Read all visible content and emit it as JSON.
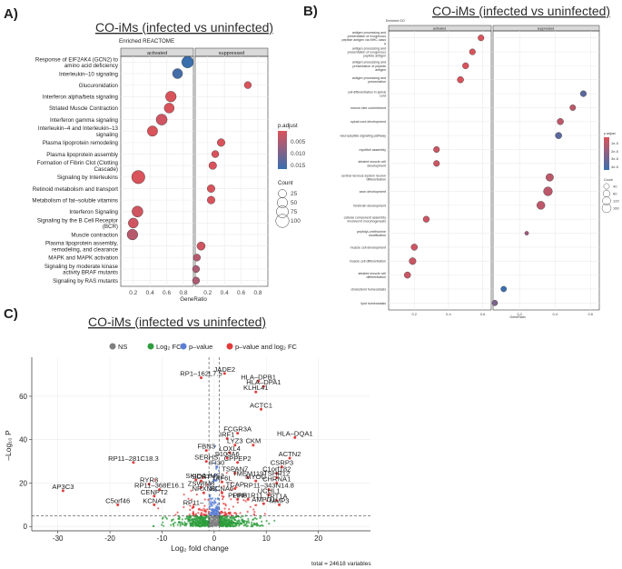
{
  "panels": {
    "a": {
      "letter": "A)",
      "title": "CO-iMs (infected vs uninfected)",
      "subtitle": "Enriched REACTOME",
      "facets": [
        "activated",
        "suppressed"
      ],
      "xlabel": "GeneRatio",
      "legend": {
        "color_title": "p.adjust",
        "color_ticks": [
          "0.005",
          "0.010",
          "0.015"
        ],
        "size_title": "Count",
        "size_ticks": [
          "25",
          "50",
          "75",
          "100"
        ]
      }
    },
    "b": {
      "letter": "B)",
      "title": "CO-iMs (infected vs uninfected)",
      "subtitle": "Enriched GO",
      "facets": [
        "activated",
        "suppressed"
      ],
      "xlabel": "GeneRatio",
      "legend": {
        "color_title": "p.adjust",
        "color_ticks": [
          "1e-5",
          "2e-5",
          "3e-5",
          "4e-5"
        ],
        "size_title": "Count",
        "size_ticks": [
          "40",
          "80",
          "120",
          "160"
        ]
      }
    },
    "c": {
      "letter": "C)",
      "title": "CO-iMs (infected vs uninfected)",
      "legend": [
        "NS",
        "Log₂ FC",
        "p–value",
        "p–value and log₂ FC"
      ],
      "xlabel": "Log₂ fold change",
      "ylabel": "–Log₁₀ P",
      "footer": "total = 24618 variables"
    }
  },
  "colors": {
    "high_sig": "#c0392b",
    "low_sig": "#3b6fb0",
    "ns": "#7f7f7f",
    "log2fc": "#2e9e3c",
    "pvalue": "#5a7fd6",
    "both": "#e33b3b"
  },
  "chart_data": [
    {
      "type": "scatter",
      "title": "Enriched REACTOME",
      "xlabel": "GeneRatio",
      "xlim": [
        0.05,
        0.92
      ],
      "xticks": [
        "0.2",
        "0.4",
        "0.6",
        "0.8"
      ],
      "categories": [
        "Response of EIF2AK4 (GCN2) to amino acid deficiency",
        "Interleukin–10 signaling",
        "Glucuronidation",
        "Interferon alpha/beta signaling",
        "Striated Muscle Contraction",
        "Interferon gamma signaling",
        "Interleukin–4 and Interleukin–13 signaling",
        "Plasma lipoprotein remodeling",
        "Plasma lipoprotein assembly",
        "Formation of Fibrin Clot (Clotting Cascade)",
        "Signaling by Interleukins",
        "Retinoid metabolism and transport",
        "Metabolism of fat–soluble vitamins",
        "Interferon Signaling",
        "Signaling by the B Cell Receptor (BCR)",
        "Muscle contraction",
        "Plasma lipoprotein assembly, remodeling, and clearance",
        "MAPK and MAPK activation",
        "Signaling by moderate kinase activity BRAF mutants",
        "Signaling by RAS mutants"
      ],
      "series": [
        {
          "name": "activated",
          "points": [
            {
              "category": "Response of EIF2AK4 (GCN2) to amino acid deficiency",
              "x": 0.85,
              "count": 70,
              "padj": 0.016
            },
            {
              "category": "Interleukin–10 signaling",
              "x": 0.73,
              "count": 45,
              "padj": 0.015
            },
            {
              "category": "Interferon alpha/beta signaling",
              "x": 0.65,
              "count": 55,
              "padj": 0.002
            },
            {
              "category": "Striated Muscle Contraction",
              "x": 0.63,
              "count": 45,
              "padj": 0.002
            },
            {
              "category": "Interferon gamma signaling",
              "x": 0.54,
              "count": 60,
              "padj": 0.003
            },
            {
              "category": "Interleukin–4 and Interleukin–13 signaling",
              "x": 0.43,
              "count": 50,
              "padj": 0.002
            },
            {
              "category": "Signaling by Interleukins",
              "x": 0.26,
              "count": 100,
              "padj": 0.002
            },
            {
              "category": "Interferon Signaling",
              "x": 0.25,
              "count": 60,
              "padj": 0.003
            },
            {
              "category": "Signaling by the B Cell Receptor (BCR)",
              "x": 0.2,
              "count": 45,
              "padj": 0.003
            },
            {
              "category": "Muscle contraction",
              "x": 0.19,
              "count": 55,
              "padj": 0.005
            }
          ]
        },
        {
          "name": "suppressed",
          "points": [
            {
              "category": "Glucuronidation",
              "x": 0.68,
              "count": 15,
              "padj": 0.002
            },
            {
              "category": "Plasma lipoprotein remodeling",
              "x": 0.36,
              "count": 20,
              "padj": 0.002
            },
            {
              "category": "Plasma lipoprotein assembly",
              "x": 0.29,
              "count": 15,
              "padj": 0.002
            },
            {
              "category": "Formation of Fibrin Clot (Clotting Cascade)",
              "x": 0.26,
              "count": 20,
              "padj": 0.002
            },
            {
              "category": "Retinoid metabolism and transport",
              "x": 0.24,
              "count": 20,
              "padj": 0.002
            },
            {
              "category": "Metabolism of fat–soluble vitamins",
              "x": 0.24,
              "count": 20,
              "padj": 0.002
            },
            {
              "category": "Plasma lipoprotein assembly, remodeling, and clearance",
              "x": 0.12,
              "count": 25,
              "padj": 0.003
            },
            {
              "category": "MAPK and MAPK activation",
              "x": 0.07,
              "count": 15,
              "padj": 0.005
            },
            {
              "category": "Signaling by moderate kinase activity BRAF mutants",
              "x": 0.06,
              "count": 15,
              "padj": 0.006
            },
            {
              "category": "Signaling by RAS mutants",
              "x": 0.06,
              "count": 15,
              "padj": 0.006
            }
          ]
        }
      ]
    },
    {
      "type": "scatter",
      "title": "Enriched GO",
      "xlabel": "GeneRatio",
      "xlim": [
        0.05,
        0.65
      ],
      "xticks": [
        "0.2",
        "0.4",
        "0.6"
      ],
      "categories": [
        "antigen processing and presentation of exogenous peptide antigen via MHC class II",
        "antigen processing and presentation of exogenous peptide antigen",
        "antigen processing and presentation of peptide antigen",
        "antigen processing and presentation",
        "cell differentiation in spinal cord",
        "neuron fate commitment",
        "spinal cord development",
        "neuropeptide signaling pathway",
        "myofibril assembly",
        "striated muscle cell development",
        "central nervous system neuron differentiation",
        "axon development",
        "forebrain development",
        "cellular component assembly involved in morphogenesis",
        "peptidyl–methionine modification",
        "muscle cell development",
        "muscle cell differentiation",
        "striated muscle cell differentiation",
        "cholesterol homeostasis",
        "lipid homeostasis"
      ],
      "series": [
        {
          "name": "activated",
          "points": [
            {
              "category": "antigen processing and presentation of exogenous peptide antigen via MHC class II",
              "x": 0.59,
              "count": 50,
              "padj": 1e-06
            },
            {
              "category": "antigen processing and presentation of exogenous peptide antigen",
              "x": 0.54,
              "count": 50,
              "padj": 1e-06
            },
            {
              "category": "antigen processing and presentation of peptide antigen",
              "x": 0.5,
              "count": 55,
              "padj": 1e-06
            },
            {
              "category": "antigen processing and presentation",
              "x": 0.47,
              "count": 60,
              "padj": 1e-06
            },
            {
              "category": "myofibril assembly",
              "x": 0.33,
              "count": 50,
              "padj": 5e-06
            },
            {
              "category": "striated muscle cell development",
              "x": 0.33,
              "count": 50,
              "padj": 5e-06
            },
            {
              "category": "cellular component assembly involved in morphogenesis",
              "x": 0.27,
              "count": 55,
              "padj": 5e-06
            },
            {
              "category": "muscle cell development",
              "x": 0.2,
              "count": 60,
              "padj": 5e-06
            },
            {
              "category": "muscle cell differentiation",
              "x": 0.19,
              "count": 75,
              "padj": 6e-06
            },
            {
              "category": "striated muscle cell differentiation",
              "x": 0.16,
              "count": 60,
              "padj": 6e-06
            }
          ]
        },
        {
          "name": "suppressed",
          "points": [
            {
              "category": "cell differentiation in spinal cord",
              "x": 0.56,
              "count": 50,
              "padj": 4e-05
            },
            {
              "category": "neuron fate commitment",
              "x": 0.5,
              "count": 45,
              "padj": 1e-05
            },
            {
              "category": "spinal cord development",
              "x": 0.43,
              "count": 60,
              "padj": 1e-05
            },
            {
              "category": "neuropeptide signaling pathway",
              "x": 0.42,
              "count": 60,
              "padj": 4e-05
            },
            {
              "category": "central nervous system neuron differentiation",
              "x": 0.37,
              "count": 100,
              "padj": 1e-05
            },
            {
              "category": "axon development",
              "x": 0.36,
              "count": 150,
              "padj": 1e-05
            },
            {
              "category": "forebrain development",
              "x": 0.32,
              "count": 120,
              "padj": 1e-05
            },
            {
              "category": "peptidyl–methionine modification",
              "x": 0.24,
              "count": 10,
              "padj": 2e-05
            },
            {
              "category": "cholesterol homeostasis",
              "x": 0.11,
              "count": 40,
              "padj": 5e-05
            },
            {
              "category": "lipid homeostasis",
              "x": 0.06,
              "count": 40,
              "padj": 3e-05
            }
          ]
        }
      ]
    },
    {
      "type": "scatter",
      "title": "CO-iMs (infected vs uninfected)",
      "xlabel": "Log₂ fold change",
      "ylabel": "–Log₁₀ P",
      "xlim": [
        -35,
        30
      ],
      "ylim": [
        -2,
        78
      ],
      "xticks": [
        -30,
        -20,
        -10,
        0,
        10,
        20
      ],
      "yticks": [
        0,
        20,
        40,
        60
      ],
      "cutoffs": {
        "log2fc": [
          -1,
          1
        ],
        "p_log10": 5
      },
      "labeled_genes": [
        {
          "gene": "JADE2",
          "x": 2.0,
          "y": 70.5
        },
        {
          "gene": "RP1–162L7.5",
          "x": -2.5,
          "y": 68.5
        },
        {
          "gene": "HLA–DPB1",
          "x": 8.5,
          "y": 67
        },
        {
          "gene": "HLA–DPA1",
          "x": 9.5,
          "y": 64.5
        },
        {
          "gene": "KLHL41",
          "x": 8.0,
          "y": 62
        },
        {
          "gene": "ACTC1",
          "x": 9.0,
          "y": 54
        },
        {
          "gene": "FCGR3A",
          "x": 4.5,
          "y": 43
        },
        {
          "gene": "HLA–DQA1",
          "x": 15.5,
          "y": 41
        },
        {
          "gene": "IRF1",
          "x": 2.5,
          "y": 40.5
        },
        {
          "gene": "LYZ3",
          "x": 4.0,
          "y": 37.5
        },
        {
          "gene": "CKM",
          "x": 7.5,
          "y": 37.5
        },
        {
          "gene": "FBN3",
          "x": -1.5,
          "y": 35
        },
        {
          "gene": "LOXL4",
          "x": 3.0,
          "y": 34
        },
        {
          "gene": "S100A6",
          "x": 2.5,
          "y": 31.5
        },
        {
          "gene": "SERHS",
          "x": -1.5,
          "y": 30
        },
        {
          "gene": "CPPEP2",
          "x": 4.5,
          "y": 29.5
        },
        {
          "gene": "ACTN2",
          "x": 14.5,
          "y": 31.5
        },
        {
          "gene": "RP11–281C18.3",
          "x": -15.5,
          "y": 29.5
        },
        {
          "gene": "IFI30",
          "x": 0.5,
          "y": 27.5
        },
        {
          "gene": "CSRP3",
          "x": 13.0,
          "y": 27.5
        },
        {
          "gene": "TSPAN7",
          "x": 4.0,
          "y": 24.5
        },
        {
          "gene": "C1orf182",
          "x": 12.0,
          "y": 24.5
        },
        {
          "gene": "TSHR12",
          "x": 12.0,
          "y": 22.5
        },
        {
          "gene": "TMEM119",
          "x": 6.5,
          "y": 22.5
        },
        {
          "gene": "LIMS2",
          "x": 0.0,
          "y": 21.5
        },
        {
          "gene": "SCRT",
          "x": -2.5,
          "y": 21
        },
        {
          "gene": "TAF6L",
          "x": 1.5,
          "y": 20.5
        },
        {
          "gene": "MYOG",
          "x": 8.0,
          "y": 21
        },
        {
          "gene": "SKIDA",
          "x": -3.5,
          "y": 21.5
        },
        {
          "gene": "RYR3",
          "x": -12.5,
          "y": 19.5
        },
        {
          "gene": "CHRNA1",
          "x": 12.0,
          "y": 20
        },
        {
          "gene": "ZSWIM8",
          "x": -2.5,
          "y": 18
        },
        {
          "gene": "TCAP",
          "x": 4.0,
          "y": 17.5
        },
        {
          "gene": "RP11–368E16.1",
          "x": -10.5,
          "y": 17
        },
        {
          "gene": "AP3C3",
          "x": -29,
          "y": 16.5
        },
        {
          "gene": "RP11–343N14.8",
          "x": 10.5,
          "y": 17
        },
        {
          "gene": "NRXN3",
          "x": -2.0,
          "y": 15.5
        },
        {
          "gene": "KCNA6",
          "x": 1.5,
          "y": 15.5
        },
        {
          "gene": "UCHL1",
          "x": 10.5,
          "y": 14.5
        },
        {
          "gene": "CENPT2",
          "x": -11.5,
          "y": 14
        },
        {
          "gene": "PLIN5",
          "x": 4.5,
          "y": 12.5
        },
        {
          "gene": "PPP1R11",
          "x": 6.5,
          "y": 12.5
        },
        {
          "gene": "TPT1A",
          "x": 12.0,
          "y": 12
        },
        {
          "gene": "C5orf46",
          "x": -18.5,
          "y": 10
        },
        {
          "gene": "KCNA4",
          "x": -11.5,
          "y": 10
        },
        {
          "gene": "MMP3",
          "x": 12.5,
          "y": 10
        },
        {
          "gene": "AMPD1",
          "x": 9.5,
          "y": 10.5
        },
        {
          "gene": "RP11–",
          "x": -4.0,
          "y": 9
        }
      ]
    }
  ]
}
